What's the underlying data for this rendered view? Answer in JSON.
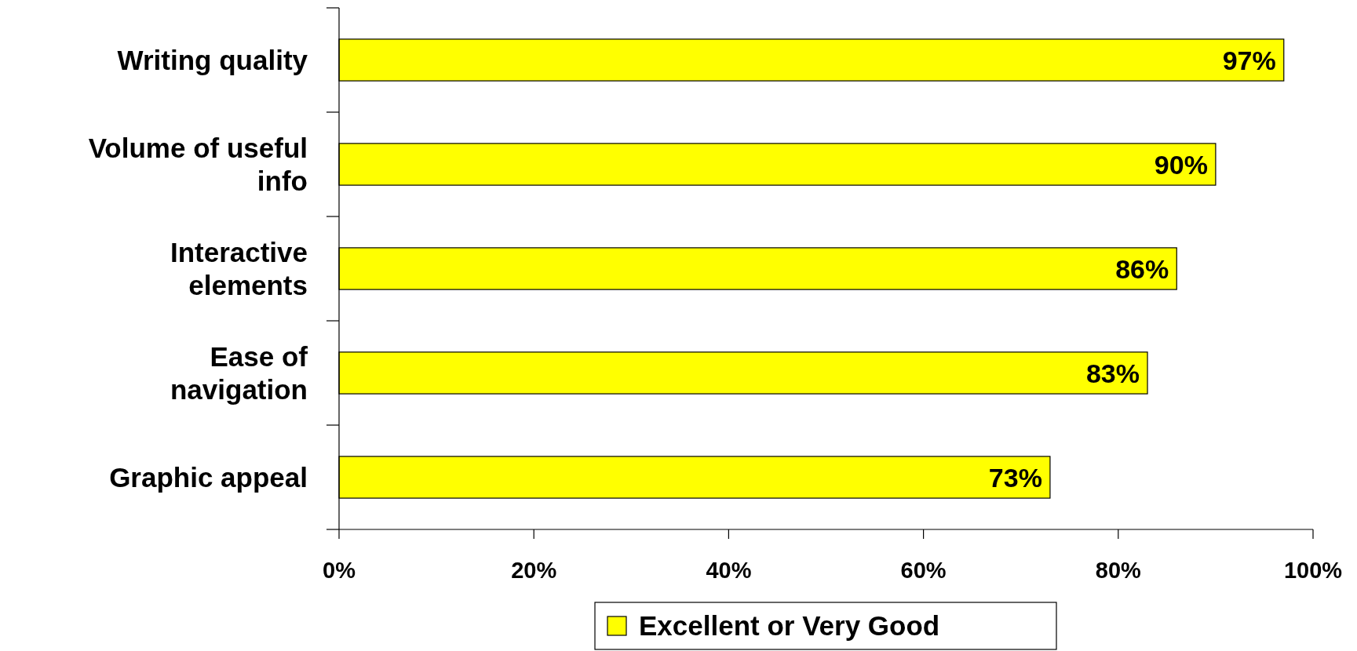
{
  "chart_data": {
    "type": "bar",
    "orientation": "horizontal",
    "categories": [
      "Writing quality",
      "Volume of useful info",
      "Interactive elements",
      "Ease of navigation",
      "Graphic appeal"
    ],
    "series": [
      {
        "name": "Excellent or Very Good",
        "color": "#ffff00",
        "values": [
          97,
          90,
          86,
          83,
          73
        ],
        "value_labels": [
          "97%",
          "90%",
          "86%",
          "83%",
          "73%"
        ]
      }
    ],
    "xlim": [
      0,
      100
    ],
    "xticks": [
      {
        "value": 0,
        "label": "0%"
      },
      {
        "value": 20,
        "label": "20%"
      },
      {
        "value": 40,
        "label": "40%"
      },
      {
        "value": 60,
        "label": "60%"
      },
      {
        "value": 80,
        "label": "80%"
      },
      {
        "value": 100,
        "label": "100%"
      }
    ],
    "legend": "bottom",
    "grid": false
  }
}
